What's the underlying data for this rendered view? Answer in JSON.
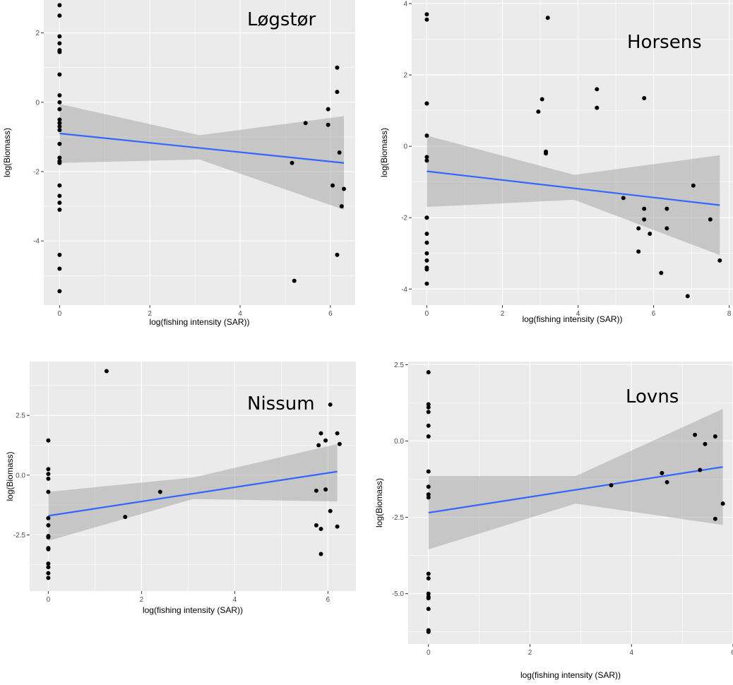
{
  "chart_data": [
    {
      "type": "scatter",
      "site": "Løgstør",
      "xlabel": "log(fishing intensity (SAR))",
      "ylabel": "log(Biomass)",
      "xlim": [
        -0.35,
        6.55
      ],
      "ylim": [
        -5.85,
        2.95
      ],
      "xticks": [
        0,
        2,
        4,
        6
      ],
      "yticks": [
        -4,
        -2,
        0,
        2
      ],
      "style": {
        "panel_bg": "#ebebeb",
        "grid": "#ffffff",
        "point": "#000000",
        "line": "#3366ff",
        "band": "#999999"
      },
      "points": [
        [
          0,
          2.8
        ],
        [
          0,
          2.5
        ],
        [
          0,
          1.9
        ],
        [
          0,
          1.7
        ],
        [
          0,
          1.5
        ],
        [
          0,
          1.45
        ],
        [
          0,
          0.8
        ],
        [
          0,
          0.2
        ],
        [
          0,
          0.0
        ],
        [
          0,
          -0.2
        ],
        [
          0,
          -0.5
        ],
        [
          0,
          -0.6
        ],
        [
          0,
          -0.7
        ],
        [
          0,
          -0.8
        ],
        [
          0,
          -1.2
        ],
        [
          0,
          -1.6
        ],
        [
          0,
          -1.7
        ],
        [
          0,
          -1.75
        ],
        [
          0,
          -2.4
        ],
        [
          0,
          -2.7
        ],
        [
          0,
          -2.9
        ],
        [
          0,
          -3.1
        ],
        [
          0,
          -4.4
        ],
        [
          0,
          -4.8
        ],
        [
          0,
          -5.45
        ],
        [
          5.15,
          -1.75
        ],
        [
          5.2,
          -5.15
        ],
        [
          5.45,
          -0.6
        ],
        [
          5.95,
          -0.2
        ],
        [
          5.95,
          -0.65
        ],
        [
          6.05,
          -2.4
        ],
        [
          6.15,
          1.0
        ],
        [
          6.15,
          0.3
        ],
        [
          6.15,
          -4.4
        ],
        [
          6.2,
          -1.45
        ],
        [
          6.25,
          -3.0
        ],
        [
          6.3,
          -2.5
        ]
      ],
      "fit": {
        "x": [
          0,
          6.3
        ],
        "y": [
          -0.9,
          -1.75
        ]
      },
      "band": [
        {
          "x": 0,
          "lo": -1.75,
          "hi": -0.05
        },
        {
          "x": 3.1,
          "lo": -1.65,
          "hi": -0.95
        },
        {
          "x": 6.3,
          "lo": -3.1,
          "hi": -0.4
        }
      ]
    },
    {
      "type": "scatter",
      "site": "Horsens",
      "xlabel": "log(fishing intensity (SAR))",
      "ylabel": "log(Biomass)",
      "xlim": [
        -0.4,
        8.1
      ],
      "ylim": [
        -4.45,
        4.1
      ],
      "xticks": [
        0,
        2,
        4,
        6,
        8
      ],
      "yticks": [
        -4,
        -2,
        0,
        2,
        4
      ],
      "style": {
        "panel_bg": "#ebebeb",
        "grid": "#ffffff",
        "point": "#000000",
        "line": "#3366ff",
        "band": "#999999"
      },
      "points": [
        [
          0,
          3.7
        ],
        [
          0,
          3.55
        ],
        [
          0,
          1.2
        ],
        [
          0,
          1.2
        ],
        [
          0,
          0.3
        ],
        [
          0,
          -0.3
        ],
        [
          0,
          -0.4
        ],
        [
          0,
          -2.0
        ],
        [
          0,
          -2.0
        ],
        [
          0,
          -2.45
        ],
        [
          0,
          -2.7
        ],
        [
          0,
          -3.0
        ],
        [
          0,
          -3.2
        ],
        [
          0,
          -3.4
        ],
        [
          0,
          -3.45
        ],
        [
          0,
          -3.85
        ],
        [
          2.95,
          0.97
        ],
        [
          3.05,
          1.32
        ],
        [
          3.15,
          -0.15
        ],
        [
          3.15,
          -0.2
        ],
        [
          3.2,
          3.6
        ],
        [
          4.5,
          1.6
        ],
        [
          4.5,
          1.08
        ],
        [
          5.2,
          -1.45
        ],
        [
          5.6,
          -2.3
        ],
        [
          5.6,
          -2.95
        ],
        [
          5.75,
          1.35
        ],
        [
          5.75,
          -1.75
        ],
        [
          5.75,
          -2.05
        ],
        [
          5.9,
          -2.45
        ],
        [
          6.2,
          -3.55
        ],
        [
          6.35,
          -1.75
        ],
        [
          6.35,
          -2.3
        ],
        [
          6.9,
          -4.2
        ],
        [
          7.05,
          -1.1
        ],
        [
          7.5,
          -2.05
        ],
        [
          7.75,
          -3.2
        ]
      ],
      "fit": {
        "x": [
          0,
          7.75
        ],
        "y": [
          -0.7,
          -1.65
        ]
      },
      "band": [
        {
          "x": 0,
          "lo": -1.7,
          "hi": 0.3
        },
        {
          "x": 3.9,
          "lo": -1.5,
          "hi": -0.8
        },
        {
          "x": 7.75,
          "lo": -3.05,
          "hi": -0.25
        }
      ]
    },
    {
      "type": "scatter",
      "site": "Nissum",
      "xlabel": "log(fishing intensity (SAR))",
      "ylabel": "log(Biomass)",
      "xlim": [
        -0.4,
        6.6
      ],
      "ylim": [
        -4.85,
        4.75
      ],
      "xticks": [
        0,
        2,
        4,
        6
      ],
      "yticks": [
        -2.5,
        0.0,
        2.5
      ],
      "ytick_labels": [
        "-2.5",
        "0.0",
        "2.5"
      ],
      "style": {
        "panel_bg": "#ebebeb",
        "grid": "#ffffff",
        "point": "#000000",
        "line": "#3366ff",
        "band": "#999999"
      },
      "points": [
        [
          0,
          1.45
        ],
        [
          0,
          0.25
        ],
        [
          0,
          0.05
        ],
        [
          0,
          -0.15
        ],
        [
          0,
          -0.7
        ],
        [
          0,
          -1.8
        ],
        [
          0,
          -2.1
        ],
        [
          0,
          -2.55
        ],
        [
          0,
          -2.6
        ],
        [
          0,
          -3.05
        ],
        [
          0,
          -3.1
        ],
        [
          0,
          -3.7
        ],
        [
          0,
          -3.85
        ],
        [
          0,
          -4.1
        ],
        [
          0,
          -4.3
        ],
        [
          1.25,
          4.35
        ],
        [
          1.65,
          -1.75
        ],
        [
          2.4,
          -0.7
        ],
        [
          5.75,
          -0.65
        ],
        [
          5.75,
          -2.1
        ],
        [
          5.8,
          1.25
        ],
        [
          5.85,
          1.75
        ],
        [
          5.85,
          -2.25
        ],
        [
          5.85,
          -3.3
        ],
        [
          5.95,
          1.45
        ],
        [
          5.95,
          -0.6
        ],
        [
          6.05,
          2.95
        ],
        [
          6.05,
          -1.5
        ],
        [
          6.2,
          1.75
        ],
        [
          6.25,
          1.3
        ],
        [
          6.2,
          -2.15
        ]
      ],
      "fit": {
        "x": [
          0,
          6.2
        ],
        "y": [
          -1.7,
          0.15
        ]
      },
      "band": [
        {
          "x": 0,
          "lo": -2.75,
          "hi": -0.7
        },
        {
          "x": 3.1,
          "lo": -1.0,
          "hi": -0.1
        },
        {
          "x": 6.2,
          "lo": -1.1,
          "hi": 1.3
        }
      ]
    },
    {
      "type": "scatter",
      "site": "Lovns",
      "xlabel": "log(fishing intensity (SAR))",
      "ylabel": "log(Biomass)",
      "xlim": [
        -0.4,
        6.0
      ],
      "ylim": [
        -6.65,
        2.6
      ],
      "xticks": [
        0,
        2,
        4,
        6
      ],
      "yticks": [
        -5.0,
        -2.5,
        0.0,
        2.5
      ],
      "ytick_labels": [
        "-5.0",
        "-2.5",
        "0.0",
        "2.5"
      ],
      "style": {
        "panel_bg": "#ebebeb",
        "grid": "#ffffff",
        "point": "#000000",
        "line": "#3366ff",
        "band": "#999999"
      },
      "points": [
        [
          0,
          2.25
        ],
        [
          0,
          1.2
        ],
        [
          0,
          1.1
        ],
        [
          0,
          0.95
        ],
        [
          0,
          0.5
        ],
        [
          0,
          0.15
        ],
        [
          0,
          -1.0
        ],
        [
          0,
          -1.5
        ],
        [
          0,
          -1.75
        ],
        [
          0,
          -1.85
        ],
        [
          0,
          -4.35
        ],
        [
          0,
          -4.5
        ],
        [
          0,
          -5.0
        ],
        [
          0,
          -5.1
        ],
        [
          0,
          -5.15
        ],
        [
          0,
          -5.5
        ],
        [
          0,
          -6.2
        ],
        [
          0,
          -6.25
        ],
        [
          3.6,
          -1.45
        ],
        [
          4.6,
          -1.05
        ],
        [
          4.7,
          -1.35
        ],
        [
          5.25,
          0.2
        ],
        [
          5.35,
          -0.95
        ],
        [
          5.45,
          -0.1
        ],
        [
          5.65,
          0.15
        ],
        [
          5.65,
          -2.55
        ],
        [
          5.8,
          -2.05
        ]
      ],
      "fit": {
        "x": [
          0,
          5.8
        ],
        "y": [
          -2.35,
          -0.85
        ]
      },
      "band": [
        {
          "x": 0,
          "lo": -3.55,
          "hi": -1.15
        },
        {
          "x": 2.9,
          "lo": -2.05,
          "hi": -1.15
        },
        {
          "x": 5.8,
          "lo": -2.75,
          "hi": 1.05
        }
      ]
    }
  ]
}
